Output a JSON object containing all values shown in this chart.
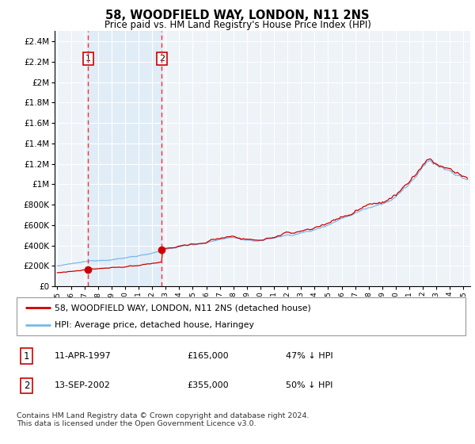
{
  "title": "58, WOODFIELD WAY, LONDON, N11 2NS",
  "subtitle": "Price paid vs. HM Land Registry's House Price Index (HPI)",
  "purchases": [
    {
      "date_num": 1997.28,
      "price": 165000,
      "label": "1",
      "date_str": "11-APR-1997",
      "pct": "47% ↓ HPI"
    },
    {
      "date_num": 2002.71,
      "price": 355000,
      "label": "2",
      "date_str": "13-SEP-2002",
      "pct": "50% ↓ HPI"
    }
  ],
  "hpi_color": "#7ab8e8",
  "price_color": "#cc0000",
  "vline_color": "#ee3333",
  "shade_color": "#d8e8f5",
  "bg_color": "#eef3f8",
  "ylim": [
    0,
    2500000
  ],
  "yticks": [
    0,
    200000,
    400000,
    600000,
    800000,
    1000000,
    1200000,
    1400000,
    1600000,
    1800000,
    2000000,
    2200000,
    2400000
  ],
  "xlim": [
    1994.8,
    2025.5
  ],
  "legend_label_house": "58, WOODFIELD WAY, LONDON, N11 2NS (detached house)",
  "legend_label_hpi": "HPI: Average price, detached house, Haringey",
  "footer": "Contains HM Land Registry data © Crown copyright and database right 2024.\nThis data is licensed under the Open Government Licence v3.0."
}
